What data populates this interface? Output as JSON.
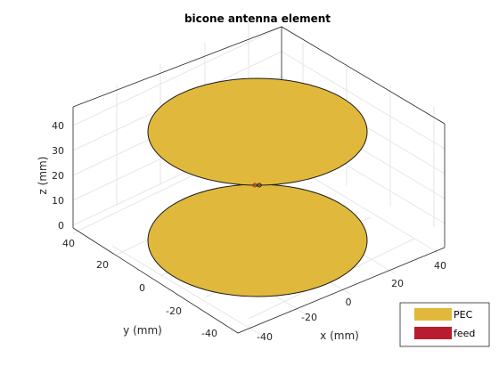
{
  "title": "bicone antenna element",
  "axes": {
    "x": {
      "label": "x (mm)",
      "ticks": [
        "-40",
        "-20",
        "0",
        "20",
        "40"
      ]
    },
    "y": {
      "label": "y (mm)",
      "ticks": [
        "40",
        "20",
        "0",
        "-20",
        "-40"
      ]
    },
    "z": {
      "label": "z (mm)",
      "ticks": [
        "0",
        "10",
        "20",
        "30",
        "40"
      ]
    }
  },
  "legend": {
    "placement": "bottom-right",
    "items": [
      {
        "label": "PEC",
        "color": "#E0B83C"
      },
      {
        "label": "feed",
        "color": "#B81C2E"
      }
    ]
  },
  "colors": {
    "grid": "#E6E6E6",
    "box": "#262626",
    "disk_edge": "#1A1A1A"
  }
}
